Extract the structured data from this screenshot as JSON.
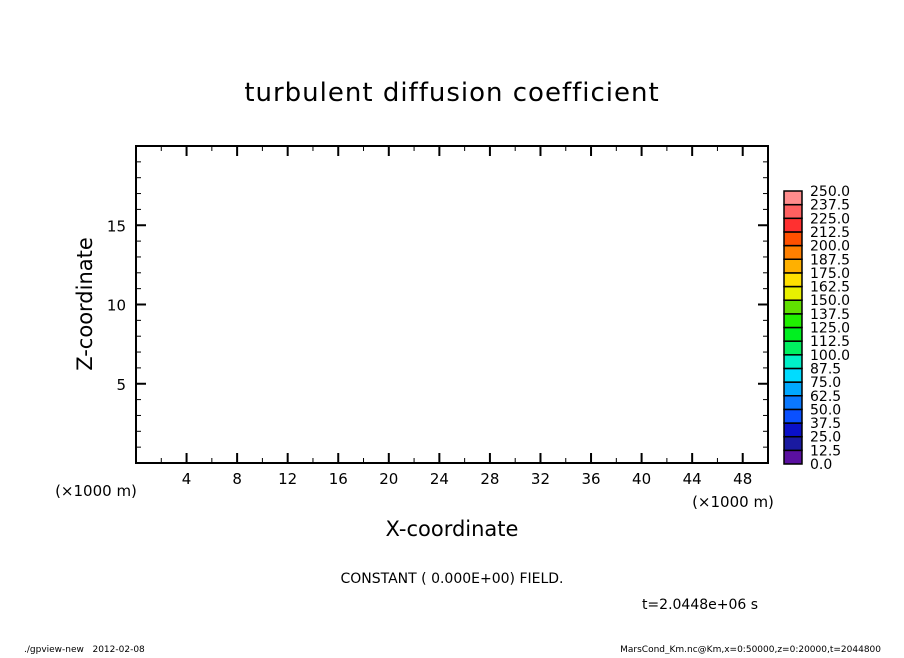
{
  "chart_data": {
    "type": "heatmap",
    "title": "turbulent diffusion coefficient",
    "xlabel": "X-coordinate",
    "ylabel": "Z-coordinate",
    "x_unit": "(×1000 m)",
    "y_unit": "(×1000 m)",
    "xlim": [
      0,
      50
    ],
    "ylim": [
      0,
      20
    ],
    "x_major_ticks": [
      4,
      8,
      12,
      16,
      20,
      24,
      28,
      32,
      36,
      40,
      44,
      48
    ],
    "x_minor_step": 2,
    "y_major_ticks": [
      5,
      10,
      15
    ],
    "y_minor_step": 1,
    "grid": false,
    "field_value": 0.0,
    "field_message": "CONSTANT ( 0.000E+00) FIELD.",
    "time_label": "t=2.0448e+06 s",
    "colorbar": {
      "position": "right",
      "levels": [
        "0.0",
        "12.5",
        "25.0",
        "37.5",
        "50.0",
        "62.5",
        "75.0",
        "87.5",
        "100.0",
        "112.5",
        "125.0",
        "137.5",
        "150.0",
        "162.5",
        "175.0",
        "187.5",
        "200.0",
        "212.5",
        "225.0",
        "237.5",
        "250.0"
      ],
      "colors": [
        "#5a10a0",
        "#1a1aa0",
        "#0a10c8",
        "#0a28f0",
        "#0a50ff",
        "#0a78ff",
        "#00a8ff",
        "#00dcff",
        "#00f0c8",
        "#00f090",
        "#00f060",
        "#00f020",
        "#20f000",
        "#60e000",
        "#a0e000",
        "#e8f000",
        "#ffe000",
        "#ffb000",
        "#ff8000",
        "#ff5000",
        "#ff1010",
        "#ff3030",
        "#ff6060",
        "#ff8c8c"
      ]
    }
  },
  "footer": {
    "left": "./gpview-new   2012-02-08",
    "right": "MarsCond_Km.nc@Km,x=0:50000,z=0:20000,t=2044800"
  }
}
